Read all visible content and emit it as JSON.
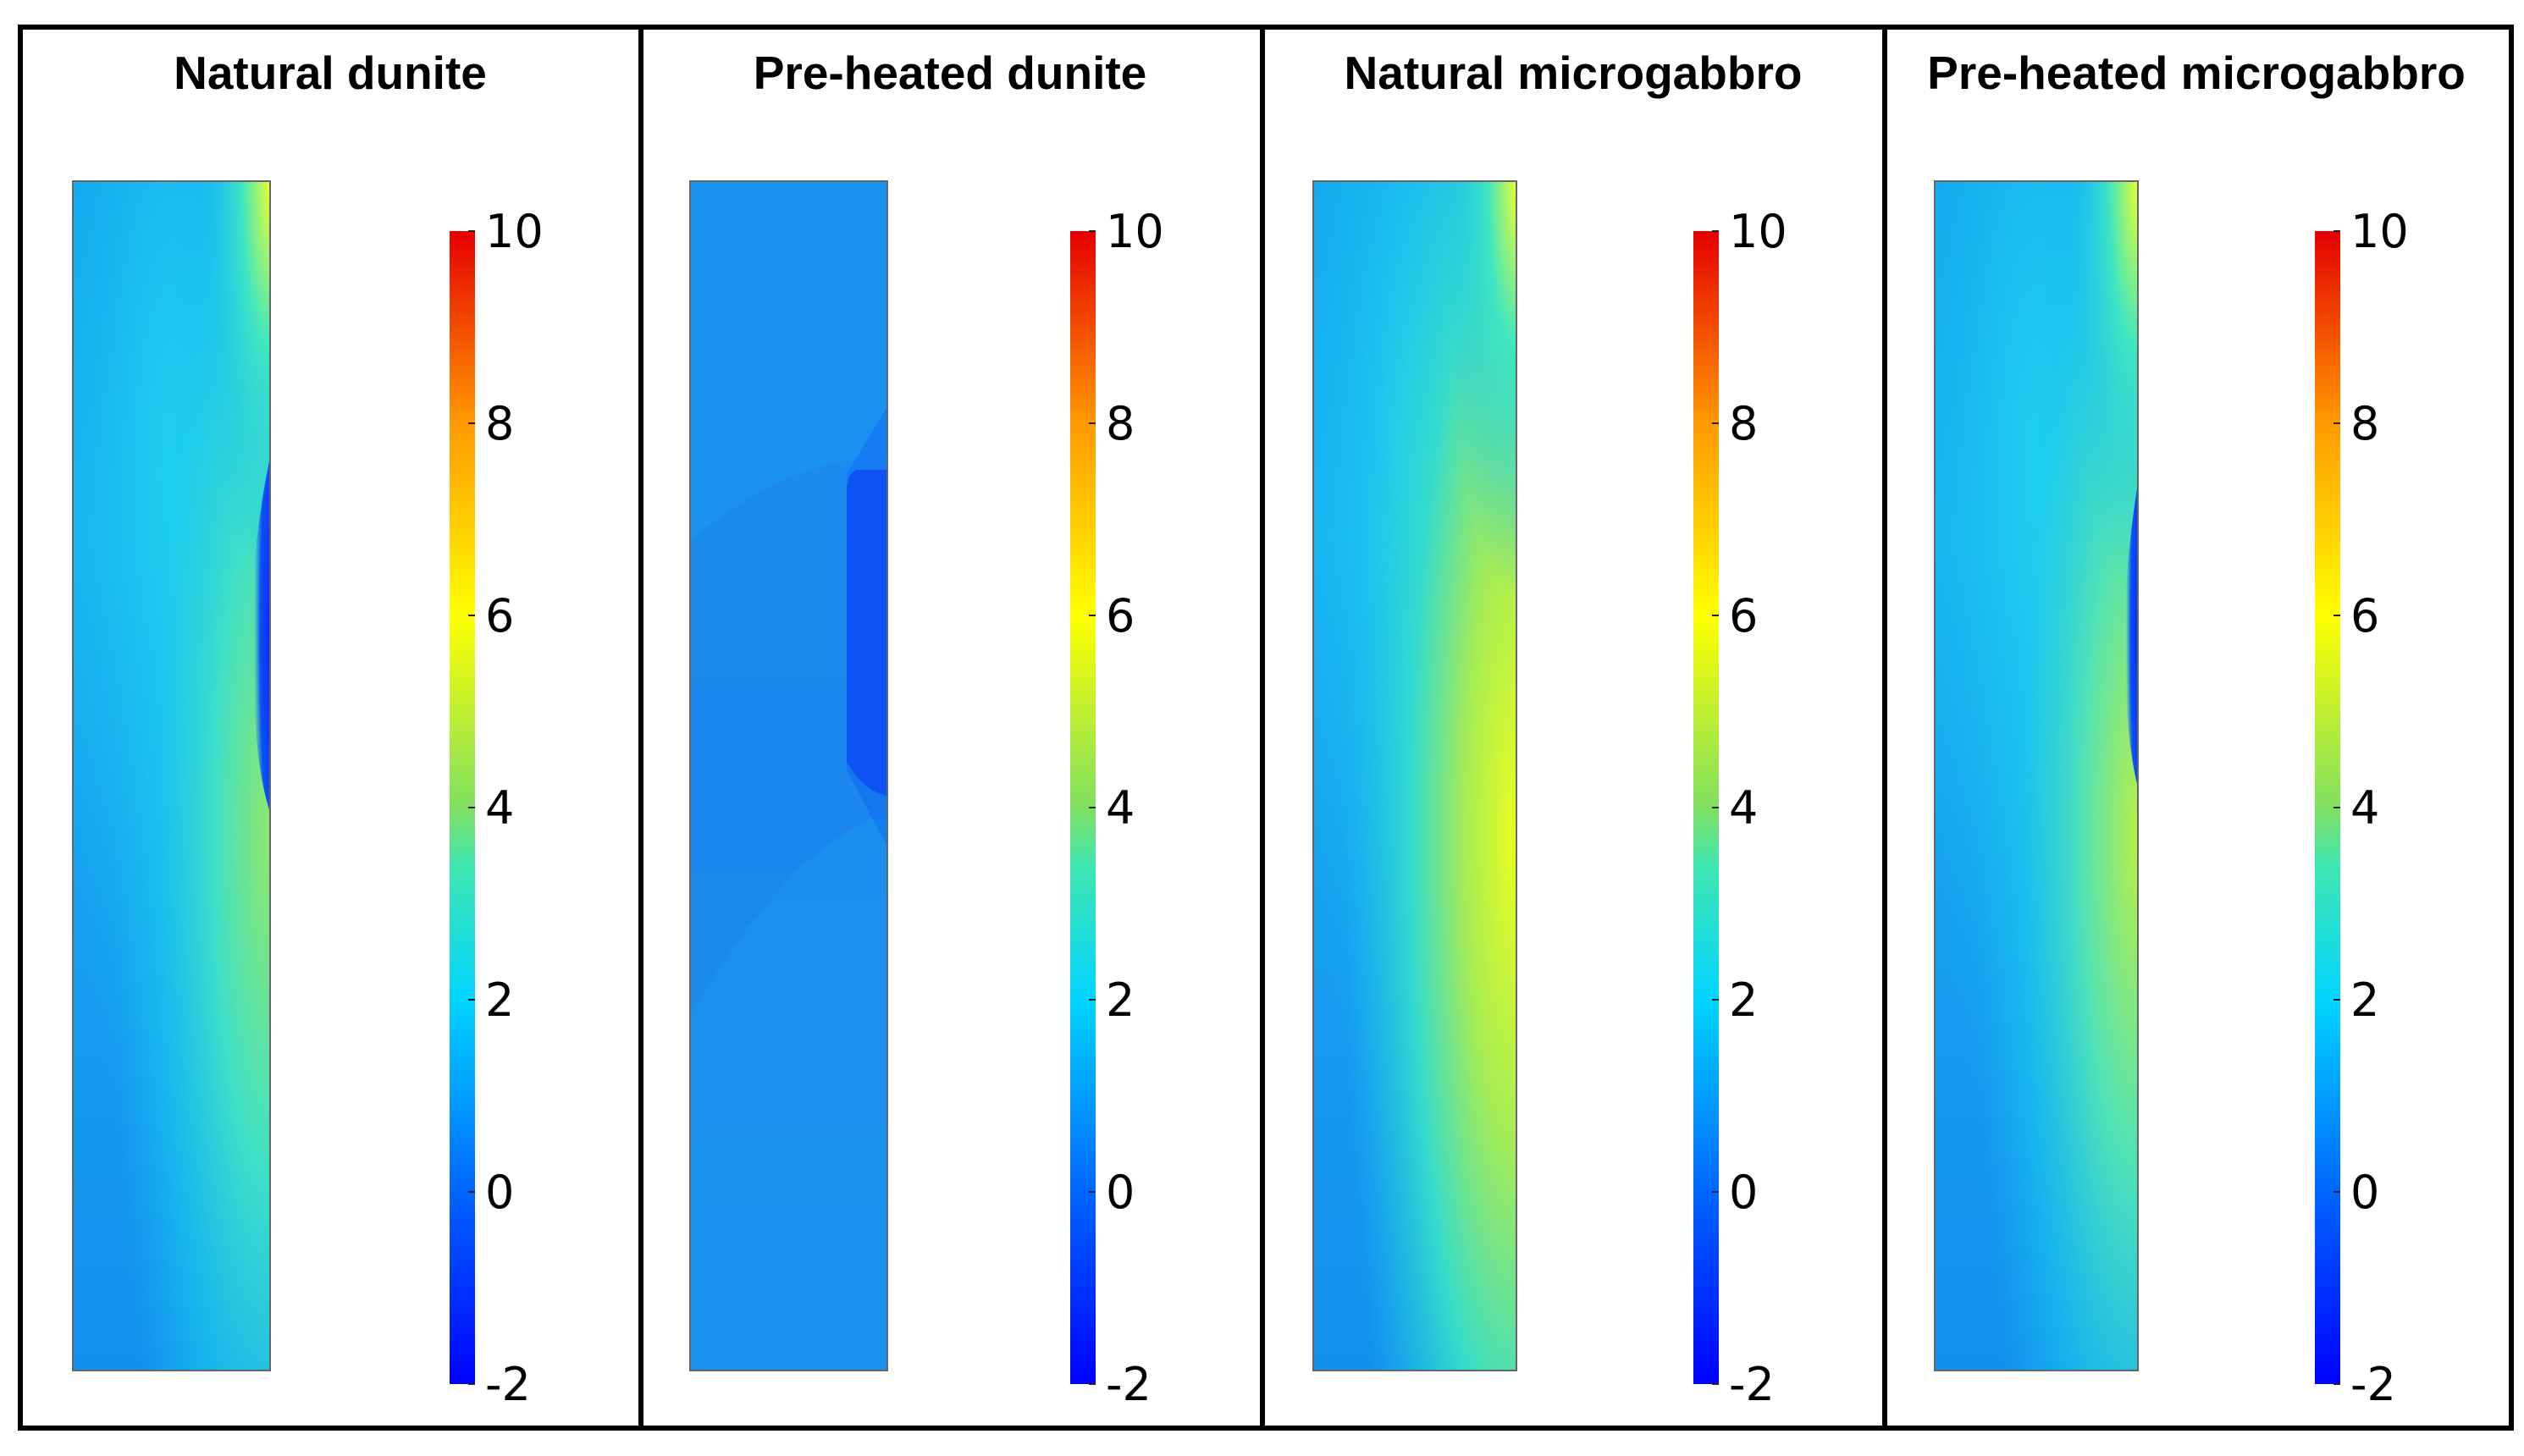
{
  "figure": {
    "panels": [
      {
        "title": "Natural dunite",
        "variant": "natural_dunite"
      },
      {
        "title": "Pre-heated dunite",
        "variant": "preheated_dunite"
      },
      {
        "title": "Natural microgabbro",
        "variant": "natural_microgabbro"
      },
      {
        "title": "Pre-heated microgabbro",
        "variant": "preheated_microgabbro"
      }
    ],
    "colorbar": {
      "min": -2,
      "max": 10,
      "ticks": [
        "10",
        "8",
        "6",
        "4",
        "2",
        "0",
        "-2"
      ],
      "tick_values": [
        10,
        8,
        6,
        4,
        2,
        0,
        -2
      ],
      "colors": [
        "#0000ff",
        "#0066ff",
        "#00ccff",
        "#33e6cc",
        "#99e64d",
        "#ffff00",
        "#ffaa00",
        "#ff5500",
        "#e60000"
      ]
    }
  }
}
